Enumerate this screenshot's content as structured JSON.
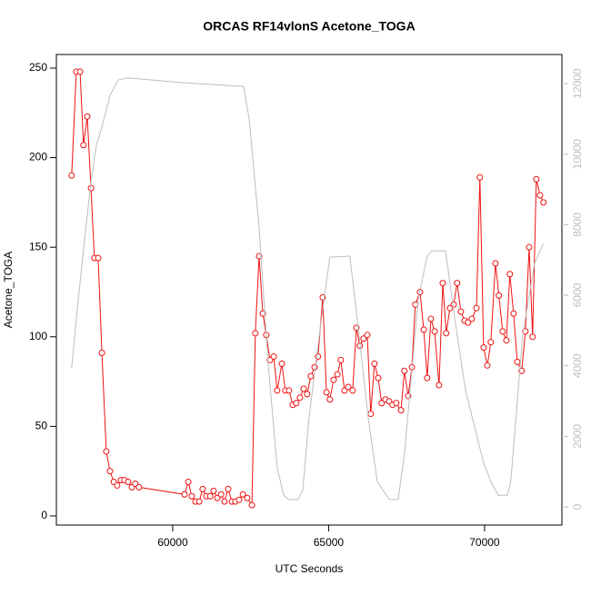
{
  "chart_data": {
    "type": "line",
    "title": "ORCAS RF14vlonS Acetone_TOGA",
    "xlabel": "UTC Seconds",
    "ylabel": "Acetone_TOGA",
    "xlim": [
      56270,
      72480
    ],
    "xticks": [
      60000,
      65000,
      70000
    ],
    "ylim": [
      -5.1,
      257.6
    ],
    "yticks": [
      0,
      50,
      100,
      150,
      200,
      250
    ],
    "y2lim": [
      -515,
      12825
    ],
    "y2ticks": [
      0,
      2000,
      4000,
      6000,
      8000,
      10000,
      12000
    ],
    "series": [
      {
        "color": "#ee1111",
        "markers": true,
        "x": [
          56760,
          56910,
          57030,
          57140,
          57260,
          57380,
          57490,
          57610,
          57730,
          57870,
          57990,
          58110,
          58220,
          58340,
          58450,
          58570,
          58690,
          58800,
          58920,
          60380,
          60500,
          60610,
          60730,
          60850,
          60960,
          61080,
          61200,
          61310,
          61430,
          61550,
          61660,
          61780,
          61900,
          62010,
          62130,
          62250,
          62390,
          62540,
          62650,
          62770,
          62890,
          63000,
          63120,
          63240,
          63350,
          63500,
          63610,
          63730,
          63850,
          63960,
          64080,
          64200,
          64310,
          64430,
          64550,
          64660,
          64810,
          64930,
          65040,
          65160,
          65280,
          65390,
          65510,
          65630,
          65770,
          65890,
          66000,
          66120,
          66240,
          66350,
          66470,
          66590,
          66700,
          66820,
          66940,
          67050,
          67170,
          67320,
          67430,
          67550,
          67670,
          67780,
          67930,
          68050,
          68160,
          68280,
          68400,
          68540,
          68660,
          68770,
          68890,
          69010,
          69120,
          69240,
          69360,
          69470,
          69590,
          69740,
          69850,
          69970,
          70090,
          70200,
          70350,
          70460,
          70580,
          70700,
          70810,
          70930,
          71050,
          71190,
          71310,
          71430,
          71540,
          71660,
          71780,
          71890
        ],
        "values": [
          190,
          248,
          248,
          207,
          223,
          183,
          144,
          144,
          91,
          36,
          25,
          19,
          17,
          20,
          20,
          19,
          16,
          18,
          16,
          12,
          19,
          11,
          8,
          8,
          15,
          11,
          11,
          14,
          10,
          12,
          8,
          15,
          8,
          8,
          9,
          12,
          10,
          6,
          102,
          145,
          113,
          101,
          87,
          89,
          70,
          85,
          70,
          70,
          62,
          63,
          66,
          71,
          68,
          78,
          83,
          89,
          122,
          69,
          65,
          76,
          79,
          87,
          70,
          72,
          70,
          105,
          95,
          99,
          101,
          57,
          85,
          77,
          63,
          65,
          64,
          62,
          63,
          59,
          81,
          67,
          83,
          118,
          125,
          104,
          77,
          110,
          103,
          73,
          130,
          102,
          116,
          118,
          130,
          114,
          109,
          108,
          110,
          116,
          189,
          94,
          84,
          97,
          141,
          123,
          103,
          98,
          135,
          113,
          86,
          81,
          103,
          150,
          100,
          188,
          179,
          175
        ]
      },
      {
        "color": "#bebebe",
        "axis": "y2",
        "markers": false,
        "x": [
          56760,
          56940,
          57140,
          57380,
          57550,
          57730,
          57990,
          58250,
          58540,
          58980,
          60290,
          62270,
          62450,
          62770,
          63060,
          63350,
          63560,
          63730,
          64020,
          64170,
          64370,
          64810,
          65040,
          65680,
          65980,
          66270,
          66560,
          66940,
          67230,
          67430,
          67870,
          68160,
          68310,
          68750,
          69040,
          69390,
          69970,
          70200,
          70440,
          70730,
          70840,
          71220,
          71600,
          71890
        ],
        "values": [
          3940,
          5610,
          7290,
          9220,
          10250,
          10760,
          11670,
          12100,
          12160,
          12130,
          12030,
          11920,
          11020,
          7930,
          4070,
          1110,
          330,
          210,
          210,
          460,
          2520,
          5610,
          7080,
          7110,
          4840,
          2520,
          720,
          210,
          210,
          1490,
          5870,
          7110,
          7260,
          7260,
          5360,
          3300,
          1240,
          720,
          330,
          330,
          720,
          4840,
          6900,
          7470
        ]
      }
    ]
  }
}
